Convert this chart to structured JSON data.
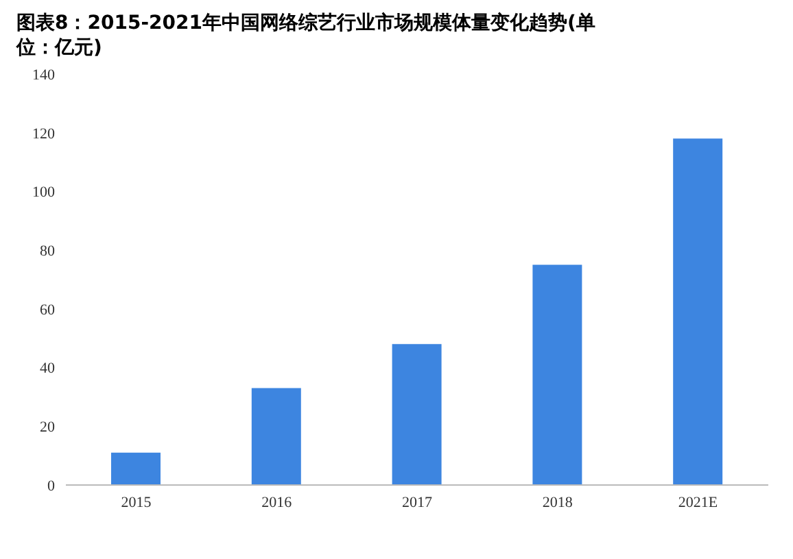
{
  "chart_data": {
    "type": "bar",
    "title": "图表8：2015-2021年中国网络综艺行业市场规模体量变化趋势(单位：亿元)",
    "categories": [
      "2015",
      "2016",
      "2017",
      "2018",
      "2021E"
    ],
    "values": [
      11,
      33,
      48,
      75,
      118
    ],
    "color": "#3d85e0",
    "ylim": [
      0,
      140
    ],
    "yticks": [
      0,
      20,
      40,
      60,
      80,
      100,
      120,
      140
    ],
    "grid": false
  }
}
